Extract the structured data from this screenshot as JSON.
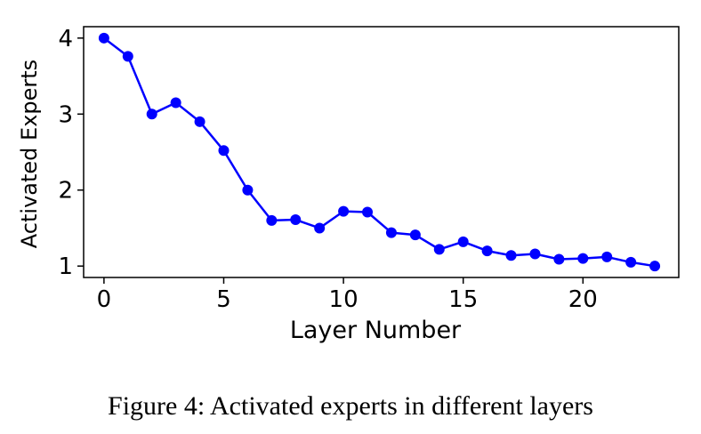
{
  "caption": "Figure 4: Activated experts in different layers",
  "chart_data": {
    "type": "line",
    "title": "",
    "xlabel": "Layer Number",
    "ylabel": "Activated Experts",
    "xlim": [
      -0.85,
      24.0
    ],
    "ylim": [
      0.85,
      4.15
    ],
    "xticks": [
      0,
      5,
      10,
      15,
      20
    ],
    "yticks": [
      1,
      2,
      3,
      4
    ],
    "grid": false,
    "legend": "none",
    "series": [
      {
        "color": "#0000ff",
        "marker": "circle",
        "x": [
          0,
          1,
          2,
          3,
          4,
          5,
          6,
          7,
          8,
          9,
          10,
          11,
          12,
          13,
          14,
          15,
          16,
          17,
          18,
          19,
          20,
          21,
          22,
          23
        ],
        "y": [
          4.0,
          3.76,
          3.0,
          3.15,
          2.9,
          2.52,
          2.0,
          1.6,
          1.61,
          1.5,
          1.72,
          1.71,
          1.44,
          1.41,
          1.22,
          1.32,
          1.2,
          1.14,
          1.16,
          1.09,
          1.1,
          1.12,
          1.05,
          1.0
        ]
      }
    ]
  }
}
